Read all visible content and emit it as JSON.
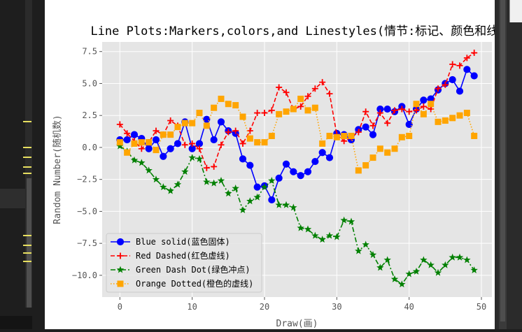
{
  "window": {
    "accent": "#e8e060"
  },
  "chart_data": {
    "type": "line",
    "title": "Line Plots:Markers,colors,and Linestyles(情节:标记、颜色和线型)",
    "xlabel": "Draw(画)",
    "ylabel": "Random Number(随机数)",
    "xlim": [
      -2.45,
      51.45
    ],
    "ylim": [
      -11.7,
      8.25
    ],
    "xticks": [
      0,
      10,
      20,
      30,
      40,
      50
    ],
    "xtick_labels": [
      "0",
      "10",
      "20",
      "30",
      "40",
      "50"
    ],
    "yticks": [
      -10,
      -7.5,
      -5,
      -2.5,
      0,
      2.5,
      5,
      7.5
    ],
    "ytick_labels": [
      "−10.0",
      "−7.5",
      "−5.0",
      "−2.5",
      "0.0",
      "2.5",
      "5.0",
      "7.5"
    ],
    "grid": true,
    "legend_position": "lower-left",
    "x": [
      0,
      1,
      2,
      3,
      4,
      5,
      6,
      7,
      8,
      9,
      10,
      11,
      12,
      13,
      14,
      15,
      16,
      17,
      18,
      19,
      20,
      21,
      22,
      23,
      24,
      25,
      26,
      27,
      28,
      29,
      30,
      31,
      32,
      33,
      34,
      35,
      36,
      37,
      38,
      39,
      40,
      41,
      42,
      43,
      44,
      45,
      46,
      47,
      48,
      49
    ],
    "series": [
      {
        "name": "Blue solid(蓝色固体)",
        "color": "#0000ff",
        "dash": "solid",
        "marker": "circle",
        "values": [
          0.6,
          0.6,
          1.0,
          0.7,
          -0.1,
          0.6,
          -0.7,
          -0.1,
          0.3,
          2.0,
          -0.1,
          0.3,
          2.2,
          0.6,
          2.0,
          1.3,
          1.1,
          -0.9,
          -1.4,
          -3.1,
          -3.0,
          -4.1,
          -2.4,
          -1.3,
          -1.9,
          -2.2,
          -1.9,
          -1.1,
          -0.4,
          -0.8,
          1.1,
          1.0,
          0.6,
          1.4,
          1.6,
          1.0,
          3.0,
          3.0,
          2.8,
          3.2,
          1.8,
          3.0,
          3.7,
          3.8,
          4.5,
          5.0,
          5.3,
          4.4,
          6.1,
          5.6
        ]
      },
      {
        "name": "Red Dashed(红色虚线)",
        "color": "#ff0000",
        "dash": "dashed",
        "marker": "plus",
        "values": [
          1.8,
          1.1,
          0.5,
          -0.1,
          0.4,
          1.3,
          1.0,
          2.1,
          1.7,
          0.2,
          0.3,
          -0.1,
          -1.6,
          -1.5,
          0.2,
          1.2,
          1.3,
          0.3,
          1.3,
          2.7,
          2.7,
          2.9,
          4.7,
          4.3,
          3.0,
          3.2,
          4.0,
          4.6,
          5.1,
          4.2,
          1.0,
          0.5,
          0.8,
          1.2,
          2.8,
          1.7,
          2.7,
          1.9,
          2.9,
          3.0,
          2.8,
          2.9,
          3.2,
          3.0,
          4.6,
          4.9,
          6.5,
          6.4,
          7.0,
          7.4
        ]
      },
      {
        "name": "Green Dash Dot(绿色冲点)",
        "color": "#008000",
        "dash": "dashdot",
        "marker": "star",
        "values": [
          0.1,
          -0.3,
          -1.0,
          -1.2,
          -1.8,
          -2.5,
          -3.1,
          -3.4,
          -2.9,
          -1.9,
          -0.8,
          -0.9,
          -2.7,
          -2.8,
          -2.6,
          -3.6,
          -3.2,
          -4.9,
          -4.2,
          -3.9,
          -3.1,
          -2.6,
          -4.5,
          -4.5,
          -4.7,
          -6.3,
          -6.4,
          -6.9,
          -7.2,
          -6.9,
          -7.0,
          -5.7,
          -5.8,
          -8.1,
          -7.6,
          -8.4,
          -9.4,
          -8.8,
          -10.3,
          -10.7,
          -9.9,
          -9.7,
          -8.8,
          -9.2,
          -9.8,
          -9.2,
          -8.6,
          -8.6,
          -8.8,
          -9.6
        ]
      },
      {
        "name": "Orange Dotted(橙色的虚线)",
        "color": "#ffa500",
        "dash": "dotted",
        "marker": "square",
        "values": [
          0.4,
          -0.4,
          0.3,
          0.4,
          0.4,
          -0.2,
          1.0,
          1.0,
          1.6,
          1.9,
          1.9,
          2.7,
          1.7,
          3.1,
          3.8,
          3.4,
          3.3,
          2.4,
          0.7,
          0.4,
          0.4,
          0.9,
          2.6,
          2.8,
          3.0,
          3.8,
          2.9,
          3.1,
          0.3,
          0.9,
          0.8,
          0.9,
          0.9,
          -1.8,
          -1.4,
          -0.8,
          -0.1,
          -0.4,
          -0.1,
          0.8,
          0.9,
          3.4,
          2.6,
          3.4,
          2.0,
          2.1,
          2.3,
          2.5,
          2.7,
          0.9
        ]
      }
    ]
  }
}
